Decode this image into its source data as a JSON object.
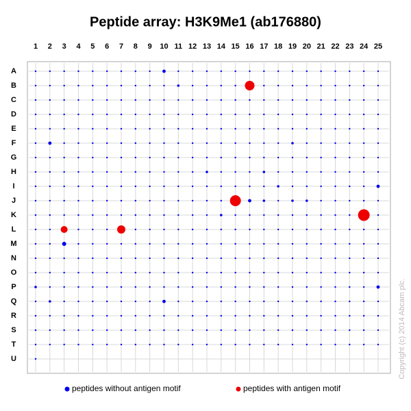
{
  "chart_data": {
    "type": "dotgrid",
    "title": "Peptide array:  H3K9Me1 (ab176880)",
    "copyright": "Copyright (c) 2014 Abcam plc.",
    "columns": [
      1,
      2,
      3,
      4,
      5,
      6,
      7,
      8,
      9,
      10,
      11,
      12,
      13,
      14,
      15,
      16,
      17,
      18,
      19,
      20,
      21,
      22,
      23,
      24,
      25
    ],
    "rows": [
      "A",
      "B",
      "C",
      "D",
      "E",
      "F",
      "G",
      "H",
      "I",
      "J",
      "K",
      "L",
      "M",
      "N",
      "O",
      "P",
      "Q",
      "R",
      "S",
      "T",
      "U"
    ],
    "grid": true,
    "series": [
      {
        "name": "peptides without antigen motif",
        "color": "#0000ee",
        "values": [
          [
            1,
            1,
            1,
            1,
            1,
            1,
            1,
            1,
            1,
            2,
            1,
            1,
            1,
            1,
            1,
            1,
            1,
            1,
            1,
            1,
            1,
            1,
            1,
            1,
            1
          ],
          [
            1,
            1,
            1,
            1,
            1,
            1,
            1,
            1,
            1,
            1,
            1.5,
            1,
            1,
            1,
            1,
            null,
            1,
            1,
            1,
            1,
            1,
            1,
            1,
            1,
            1
          ],
          [
            1,
            1,
            1,
            1,
            1,
            1,
            1,
            1,
            1,
            1,
            1,
            1,
            1,
            1,
            1,
            1,
            1,
            1,
            1,
            1,
            1,
            1,
            1,
            1,
            1
          ],
          [
            1,
            1,
            1,
            1,
            1,
            1,
            1,
            1,
            1,
            1,
            1,
            1,
            1,
            1,
            1,
            1,
            1,
            1,
            1,
            1,
            1,
            1,
            1,
            1,
            1
          ],
          [
            1,
            1,
            1,
            1,
            1,
            1,
            1,
            1,
            1,
            1,
            1,
            1,
            1,
            1,
            1,
            1,
            1,
            1,
            1,
            1,
            1,
            1,
            1,
            1,
            1
          ],
          [
            1,
            2,
            1,
            1,
            1,
            1,
            1,
            1,
            1,
            1,
            1,
            1,
            1,
            1,
            1,
            1,
            1,
            1,
            1.5,
            1,
            1,
            1,
            1,
            1,
            1
          ],
          [
            1,
            1,
            1,
            1,
            1,
            1,
            1,
            1,
            1,
            1,
            1,
            1,
            1,
            1,
            1,
            1,
            1,
            1,
            1,
            1,
            1,
            1,
            1,
            1,
            1
          ],
          [
            1,
            1,
            1,
            1,
            1,
            1,
            1,
            1,
            1,
            1,
            1,
            1,
            1.5,
            1,
            1,
            1,
            1.5,
            1,
            1,
            1,
            1,
            1,
            1,
            1,
            1
          ],
          [
            1,
            1,
            1,
            1,
            1,
            1,
            1,
            1,
            1,
            1,
            1,
            1,
            1,
            1,
            1,
            1,
            1,
            1.5,
            1,
            1,
            1,
            1,
            1,
            1,
            2
          ],
          [
            1,
            1,
            1,
            1,
            1,
            1,
            1,
            1,
            1,
            1,
            1,
            1,
            1,
            1,
            null,
            2,
            1.5,
            1,
            1.5,
            1.5,
            1,
            1,
            1,
            1,
            1
          ],
          [
            1,
            1,
            1,
            1,
            1,
            1,
            1,
            1,
            1,
            1,
            1,
            1,
            1,
            1.5,
            1,
            1,
            1,
            1,
            1,
            1,
            1,
            1,
            1,
            null,
            1
          ],
          [
            1,
            1,
            null,
            1,
            1,
            1,
            null,
            1,
            1,
            1,
            1,
            1,
            1,
            1,
            1,
            1,
            1,
            1,
            1,
            1,
            1,
            1,
            1,
            1,
            1
          ],
          [
            1,
            1,
            2.5,
            1,
            1,
            1,
            1,
            1,
            1,
            1,
            1,
            1,
            1,
            1,
            1,
            1,
            1,
            1,
            1,
            1,
            1,
            1,
            1,
            1,
            1
          ],
          [
            1,
            1,
            1,
            1,
            1,
            1,
            1,
            1,
            1,
            1,
            1,
            1,
            1,
            1,
            1,
            1,
            1,
            1,
            1,
            1,
            1,
            1,
            1,
            1,
            1
          ],
          [
            1,
            1,
            1,
            1,
            1,
            1,
            1,
            1,
            1,
            1,
            1,
            1,
            1,
            1,
            1,
            1,
            1,
            1,
            1,
            1,
            1,
            1,
            1,
            1,
            1
          ],
          [
            1.5,
            1,
            1,
            1,
            1,
            1,
            1,
            1,
            1,
            1,
            1,
            1,
            1,
            1,
            1,
            1,
            1,
            1,
            1,
            1,
            1,
            1,
            1,
            1,
            2
          ],
          [
            1,
            1.5,
            1,
            1,
            1,
            1,
            1,
            1,
            1,
            2,
            1,
            1,
            1,
            1,
            1,
            1,
            1,
            1,
            1,
            1,
            1,
            1,
            1,
            1,
            1
          ],
          [
            1,
            1,
            1,
            1,
            1,
            1,
            1,
            1,
            1,
            1,
            1,
            1,
            1,
            1,
            1,
            1,
            1,
            1,
            1,
            1,
            1,
            1,
            1,
            1,
            1
          ],
          [
            1,
            1,
            1,
            1,
            1,
            1,
            1,
            1,
            1,
            1,
            1,
            1,
            1,
            1,
            1,
            1,
            1,
            1,
            1,
            1,
            1,
            1,
            1,
            1,
            1
          ],
          [
            1,
            1,
            1,
            1,
            1,
            1,
            1,
            1,
            1,
            1,
            1,
            1,
            1,
            1,
            1,
            1,
            1,
            1,
            1,
            1,
            1,
            1,
            1,
            1,
            1
          ],
          [
            1,
            null,
            null,
            null,
            null,
            null,
            null,
            null,
            null,
            null,
            null,
            null,
            null,
            null,
            null,
            null,
            null,
            null,
            null,
            null,
            null,
            null,
            null,
            null,
            null
          ]
        ]
      },
      {
        "name": "peptides with antigen motif",
        "color": "#ee0000",
        "x": [
          16,
          15,
          24,
          3,
          7
        ],
        "y": [
          "B",
          "J",
          "K",
          "L",
          "L"
        ],
        "sizes": [
          7,
          8,
          8.5,
          5,
          6
        ]
      }
    ]
  }
}
